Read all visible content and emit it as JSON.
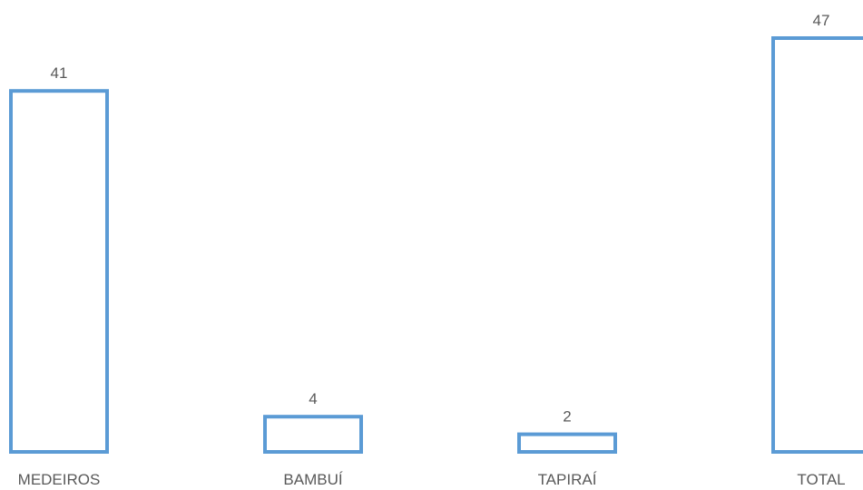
{
  "chart_data": {
    "type": "bar",
    "categories": [
      "MEDEIROS",
      "BAMBUÍ",
      "TAPIRAÍ",
      "TOTAL"
    ],
    "values": [
      41,
      4,
      2,
      47
    ],
    "data_labels": [
      "41",
      "4",
      "2",
      "47"
    ],
    "title": "",
    "xlabel": "",
    "ylabel": "",
    "ylim": [
      0,
      47
    ],
    "grid": false,
    "legend": "none",
    "colors": {
      "bar_outline": "#5B9BD5",
      "bar_fill": "#FFFFFF",
      "label_text": "#595959"
    }
  }
}
